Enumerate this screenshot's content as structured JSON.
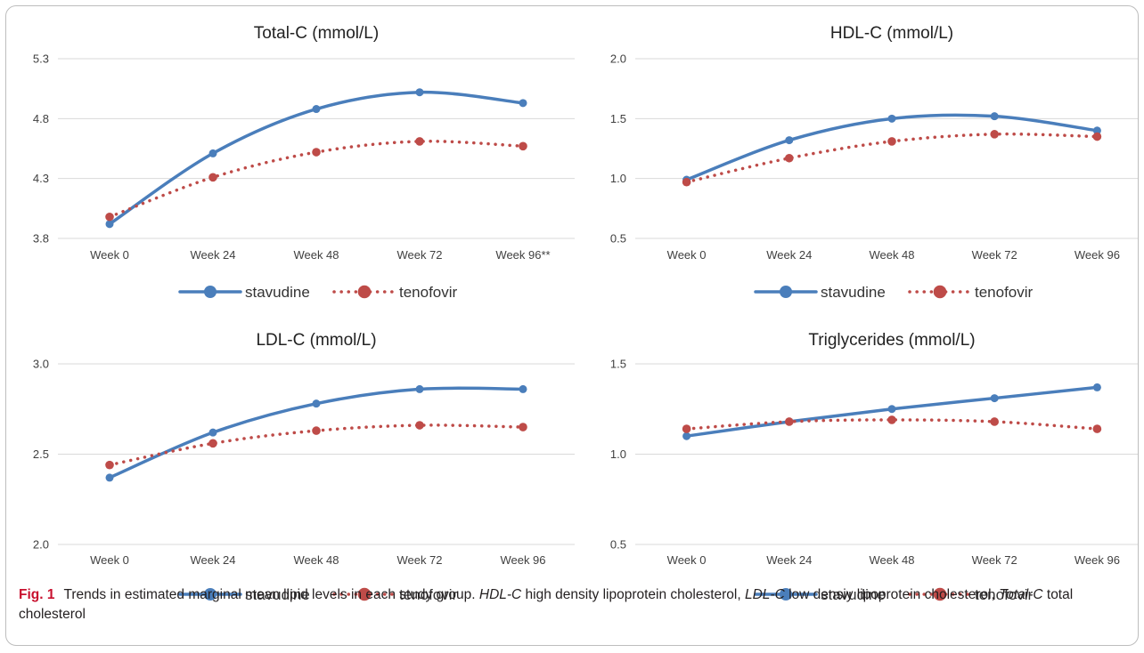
{
  "colors": {
    "stavudine": "#4a7ebb",
    "tenofovir": "#be4b48",
    "grid": "#d9d9d9",
    "axis_text": "#404040",
    "title_text": "#222222"
  },
  "chart_data": [
    {
      "type": "line",
      "title": "Total-C (mmol/L)",
      "categories": [
        "Week 0",
        "Week 24",
        "Week 48",
        "Week 72",
        "Week 96**"
      ],
      "yticks": [
        "3.8",
        "4.3",
        "4.8",
        "5.3"
      ],
      "ylim": [
        3.8,
        5.3
      ],
      "grid": true,
      "legend": "bottom",
      "series": [
        {
          "name": "stavudine",
          "values": [
            3.92,
            4.51,
            4.88,
            5.02,
            4.93
          ]
        },
        {
          "name": "tenofovir",
          "values": [
            3.98,
            4.31,
            4.52,
            4.61,
            4.57
          ]
        }
      ]
    },
    {
      "type": "line",
      "title": "HDL-C (mmol/L)",
      "categories": [
        "Week 0",
        "Week 24",
        "Week 48",
        "Week 72",
        "Week 96"
      ],
      "yticks": [
        "0.5",
        "1.0",
        "1.5",
        "2.0"
      ],
      "ylim": [
        0.5,
        2.0
      ],
      "grid": true,
      "legend": "bottom",
      "series": [
        {
          "name": "stavudine",
          "values": [
            0.99,
            1.32,
            1.5,
            1.52,
            1.4
          ]
        },
        {
          "name": "tenofovir",
          "values": [
            0.97,
            1.17,
            1.31,
            1.37,
            1.35
          ]
        }
      ]
    },
    {
      "type": "line",
      "title": "LDL-C (mmol/L)",
      "categories": [
        "Week 0",
        "Week 24",
        "Week 48",
        "Week 72",
        "Week 96"
      ],
      "yticks": [
        "2.0",
        "2.5",
        "3.0"
      ],
      "ylim": [
        2.0,
        3.0
      ],
      "grid": true,
      "legend": "bottom",
      "series": [
        {
          "name": "stavudine",
          "values": [
            2.37,
            2.62,
            2.78,
            2.86,
            2.86
          ]
        },
        {
          "name": "tenofovir",
          "values": [
            2.44,
            2.56,
            2.63,
            2.66,
            2.65
          ]
        }
      ]
    },
    {
      "type": "line",
      "title": "Triglycerides (mmol/L)",
      "categories": [
        "Week 0",
        "Week 24",
        "Week 48",
        "Week 72",
        "Week 96"
      ],
      "yticks": [
        "0.5",
        "1.0",
        "1.5"
      ],
      "ylim": [
        0.5,
        1.5
      ],
      "grid": true,
      "legend": "bottom",
      "series": [
        {
          "name": "stavudine",
          "values": [
            1.1,
            1.18,
            1.25,
            1.31,
            1.37
          ]
        },
        {
          "name": "tenofovir",
          "values": [
            1.14,
            1.18,
            1.19,
            1.18,
            1.14
          ]
        }
      ]
    }
  ],
  "caption": {
    "label": "Fig. 1",
    "text_1": "Trends in estimated marginal mean lipid levels in each study group. ",
    "abbr_1": "HDL-C",
    "text_2": " high density lipoprotein cholesterol, ",
    "abbr_2": "LDL-C",
    "text_3": " low densiy lipoprotein cholesterol, ",
    "abbr_3": "Total-C",
    "text_4": " total cholesterol"
  }
}
